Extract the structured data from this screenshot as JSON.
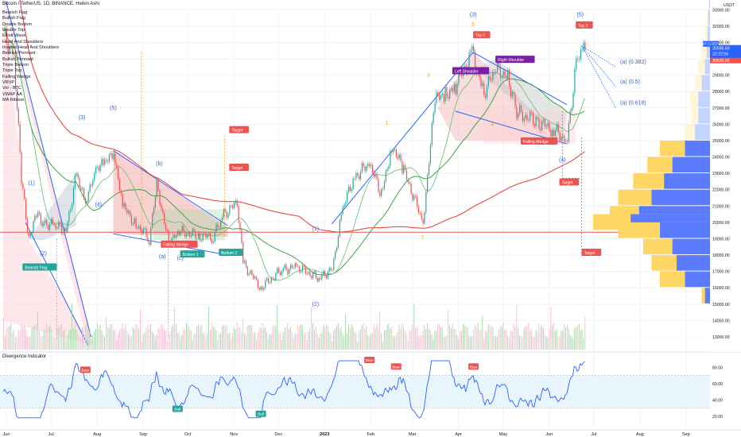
{
  "header": {
    "title": "Bitcoin / TetherUS, 1D, BINANCE, Heikin Ashi"
  },
  "indicators": [
    "Bearish Flag",
    "Bullish Flag",
    "Double Bottom",
    "Double Top",
    "Elliott Wave",
    "Head And Shoulders",
    "Inverse Head And Shoulders",
    "Bearish Pennant",
    "Bullish Pennant",
    "Triple Bottom",
    "Triple Top",
    "Falling Wedge",
    "VRVP",
    "Vol - BTC",
    "VWAP AA",
    "MA Ribbon"
  ],
  "chart_data": {
    "type": "candlestick",
    "symbol": "BTCUSDT",
    "y_axis_unit": "USDT",
    "price_ticks": [
      13000,
      14000,
      15000,
      16000,
      17000,
      18000,
      19000,
      20000,
      21000,
      22000,
      23000,
      24000,
      25000,
      26000,
      27000,
      28000,
      29000,
      30000,
      31000,
      32000,
      33000
    ],
    "price_ticks_labels": [
      "13000.00",
      "14000.00",
      "15000.00",
      "16000.00",
      "17000.00",
      "18000.00",
      "19000.00",
      "20000.00",
      "21000.00",
      "22000.00",
      "23000.00",
      "24000.00",
      "25000.00",
      "26000.00",
      "27000.00",
      "28000.00",
      "29000.00",
      "30000.00",
      "31000.00",
      "32000.00",
      "33000.00"
    ],
    "x_ticks": [
      "Jun",
      "Jul",
      "Aug",
      "Sep",
      "Oct",
      "Nov",
      "Dec",
      "2023",
      "Feb",
      "Mar",
      "Apr",
      "May",
      "Jun",
      "Jul",
      "Aug",
      "Sep"
    ],
    "current_price_labels": [
      "BTCUSDT",
      "30595.69",
      "22:22:56",
      "30530.00"
    ],
    "elliott_wave_labels": [
      "(1)",
      "(2)",
      "(3)",
      "(4)",
      "(5)",
      "(b)",
      "(a)",
      "(c)",
      "(1)",
      "(2)",
      "(3)",
      "(4)",
      "(5)"
    ],
    "retracement_labels": [
      "(a) (0.382)",
      "(a) (0.5)",
      "(a) (0.618)"
    ],
    "sub_wave_labels": [
      "1",
      "2",
      "3",
      "4",
      "5"
    ],
    "pattern_labels": [
      "Bearish Flag",
      "Falling Wedge",
      "Bottom 1",
      "Bottom 2",
      "Target",
      "Target",
      "Left Shoulder",
      "Right Shoulder",
      "Top 1",
      "Top 2",
      "Falling Wedge",
      "Target",
      "Target"
    ],
    "close_series": [
      {
        "d": "2022-06-01",
        "c": 31500
      },
      {
        "d": "2022-06-08",
        "c": 30200
      },
      {
        "d": "2022-06-13",
        "c": 22500
      },
      {
        "d": "2022-06-18",
        "c": 19000
      },
      {
        "d": "2022-06-22",
        "c": 20500
      },
      {
        "d": "2022-06-28",
        "c": 20000
      },
      {
        "d": "2022-07-05",
        "c": 19800
      },
      {
        "d": "2022-07-13",
        "c": 19500
      },
      {
        "d": "2022-07-20",
        "c": 23000
      },
      {
        "d": "2022-07-26",
        "c": 21000
      },
      {
        "d": "2022-08-01",
        "c": 23300
      },
      {
        "d": "2022-08-08",
        "c": 23500
      },
      {
        "d": "2022-08-14",
        "c": 24400
      },
      {
        "d": "2022-08-20",
        "c": 21000
      },
      {
        "d": "2022-08-28",
        "c": 20000
      },
      {
        "d": "2022-09-07",
        "c": 19000
      },
      {
        "d": "2022-09-12",
        "c": 22200
      },
      {
        "d": "2022-09-20",
        "c": 18800
      },
      {
        "d": "2022-09-28",
        "c": 19400
      },
      {
        "d": "2022-10-10",
        "c": 19200
      },
      {
        "d": "2022-10-20",
        "c": 19100
      },
      {
        "d": "2022-10-27",
        "c": 20500
      },
      {
        "d": "2022-11-05",
        "c": 21200
      },
      {
        "d": "2022-11-09",
        "c": 17500
      },
      {
        "d": "2022-11-21",
        "c": 16000
      },
      {
        "d": "2022-12-05",
        "c": 17100
      },
      {
        "d": "2022-12-15",
        "c": 17300
      },
      {
        "d": "2022-12-30",
        "c": 16550
      },
      {
        "d": "2023-01-08",
        "c": 17200
      },
      {
        "d": "2023-01-15",
        "c": 20800
      },
      {
        "d": "2023-01-22",
        "c": 22700
      },
      {
        "d": "2023-02-02",
        "c": 23600
      },
      {
        "d": "2023-02-10",
        "c": 21700
      },
      {
        "d": "2023-02-17",
        "c": 24700
      },
      {
        "d": "2023-02-25",
        "c": 23200
      },
      {
        "d": "2023-03-10",
        "c": 20000
      },
      {
        "d": "2023-03-18",
        "c": 27500
      },
      {
        "d": "2023-03-25",
        "c": 27800
      },
      {
        "d": "2023-04-01",
        "c": 28400
      },
      {
        "d": "2023-04-12",
        "c": 30300
      },
      {
        "d": "2023-04-20",
        "c": 28000
      },
      {
        "d": "2023-04-28",
        "c": 29300
      },
      {
        "d": "2023-05-06",
        "c": 29000
      },
      {
        "d": "2023-05-12",
        "c": 26700
      },
      {
        "d": "2023-05-25",
        "c": 26200
      },
      {
        "d": "2023-06-05",
        "c": 25700
      },
      {
        "d": "2023-06-15",
        "c": 25000
      },
      {
        "d": "2023-06-21",
        "c": 29900
      },
      {
        "d": "2023-06-24",
        "c": 30600
      },
      {
        "d": "2023-06-27",
        "c": 30600
      }
    ],
    "volume_axis_labels": [],
    "divergence": {
      "title": "Divergence Indicator",
      "y_ticks": [
        20,
        40,
        60,
        80
      ],
      "y_ticks_labels": [
        "20.00",
        "40.00",
        "60.00",
        "80.00"
      ],
      "band": [
        30,
        70
      ],
      "labels": [
        "Bear",
        "Bull",
        "Bull",
        "Bear",
        "Bear",
        "Bear"
      ]
    },
    "horizontal_lines": [
      19400
    ],
    "grid": true,
    "legend": "top-left"
  },
  "colors": {
    "bull": "#26a69a",
    "bear": "#ef5350",
    "wave": "#2962ff",
    "ma_long": "#e53935",
    "ma_mid": "#43a047",
    "ma_alt": "#f57c00",
    "vrvp_up": "#5b7cff",
    "vrvp_down": "#ffd54f",
    "last_price": "#2962ff",
    "label_bear": "#ef5350",
    "label_bull": "#26a69a",
    "label_purple": "#7b1fa2",
    "divergence_line": "#2962ff",
    "divergence_band": "#e3f2fd"
  }
}
